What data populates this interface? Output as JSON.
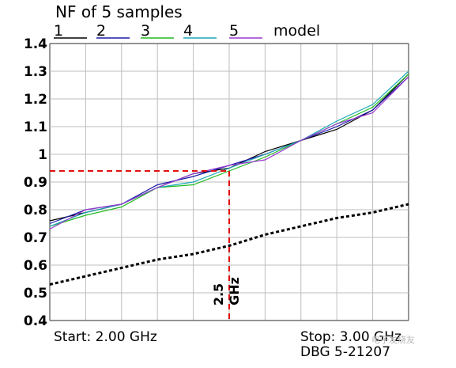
{
  "chart_data": {
    "type": "line",
    "title": "NF of 5 samples",
    "x": [
      2.0,
      2.1,
      2.2,
      2.3,
      2.4,
      2.5,
      2.6,
      2.7,
      2.8,
      2.9,
      3.0
    ],
    "xlim": [
      2.0,
      3.0
    ],
    "ylim": [
      0.4,
      1.4
    ],
    "yticks": [
      "1.4",
      "1.3",
      "1.2",
      "1.1",
      "1",
      "0.9",
      "0.8",
      "0.7",
      "0.6",
      "0.5",
      "0.4"
    ],
    "grid": true,
    "legend_position": "top",
    "series": [
      {
        "name": "1",
        "color": "#000000",
        "values": [
          0.76,
          0.79,
          0.82,
          0.88,
          0.93,
          0.95,
          1.01,
          1.05,
          1.09,
          1.16,
          1.29
        ]
      },
      {
        "name": "2",
        "color": "#1a1aa8",
        "values": [
          0.75,
          0.8,
          0.82,
          0.89,
          0.92,
          0.96,
          1.0,
          1.05,
          1.1,
          1.16,
          1.28
        ]
      },
      {
        "name": "3",
        "color": "#22bb22",
        "values": [
          0.74,
          0.78,
          0.81,
          0.88,
          0.89,
          0.94,
          0.99,
          1.05,
          1.11,
          1.17,
          1.29
        ]
      },
      {
        "name": "4",
        "color": "#1aa8b4",
        "values": [
          0.74,
          0.79,
          0.82,
          0.88,
          0.9,
          0.95,
          1.0,
          1.05,
          1.12,
          1.18,
          1.3
        ]
      },
      {
        "name": "5",
        "color": "#9a3ad0",
        "values": [
          0.73,
          0.8,
          0.82,
          0.88,
          0.93,
          0.96,
          0.98,
          1.05,
          1.11,
          1.15,
          1.28
        ]
      },
      {
        "name": "model",
        "color": "#000000",
        "dashed": true,
        "values": [
          0.53,
          0.56,
          0.59,
          0.62,
          0.64,
          0.67,
          0.71,
          0.74,
          0.77,
          0.79,
          0.82
        ]
      }
    ],
    "marker": {
      "x": 2.5,
      "y": 0.94,
      "label_line1": "2.5",
      "label_line2": "GHz",
      "color": "#e01010"
    },
    "start_label": "Start: 2.00 GHz",
    "stop_label": "Stop: 3.00 GHz",
    "dbg_label": "DBG 5-21207"
  },
  "watermark": "电子发烧友"
}
